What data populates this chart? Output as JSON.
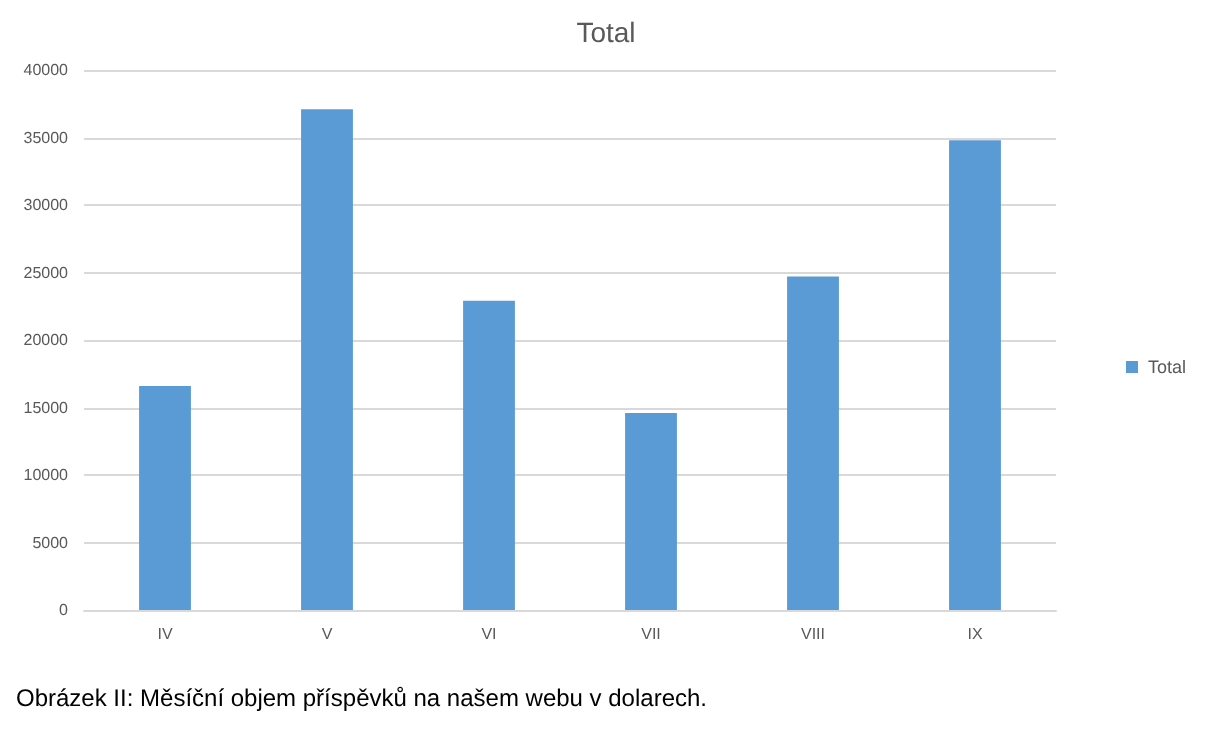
{
  "chart_data": {
    "type": "bar",
    "title": "Total",
    "categories": [
      "IV",
      "V",
      "VI",
      "VII",
      "VIII",
      "IX"
    ],
    "series": [
      {
        "name": "Total",
        "color": "#5b9bd5",
        "values": [
          16600,
          37100,
          22900,
          14600,
          24700,
          34800
        ]
      }
    ],
    "ylim": [
      0,
      40000
    ],
    "yticks": [
      0,
      5000,
      10000,
      15000,
      20000,
      25000,
      30000,
      35000,
      40000
    ],
    "grid": "y",
    "legend": "right",
    "annotations": [
      "Obrázek II: Měsíční objem příspěvků na našem webu v dolarech."
    ]
  }
}
